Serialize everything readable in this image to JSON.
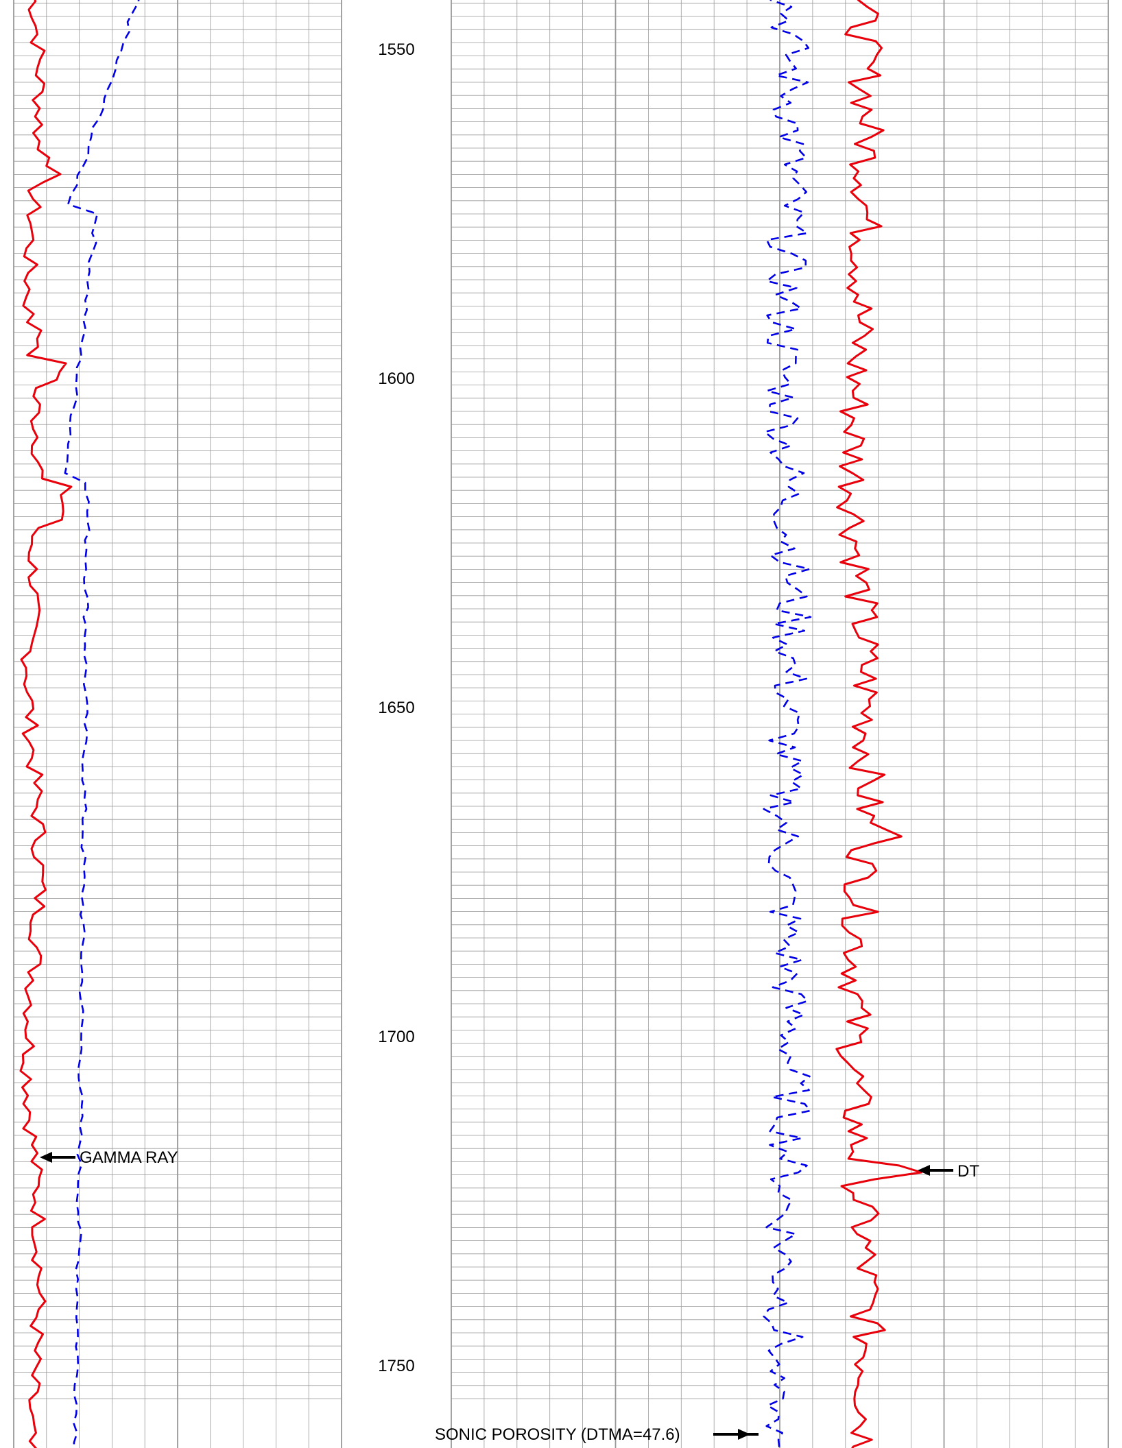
{
  "chart_data": {
    "type": "line",
    "depth_axis": {
      "range": [
        1535,
        1755
      ],
      "ticks": [
        1550,
        1600,
        1650,
        1700,
        1750
      ],
      "tick_labels": [
        "1550",
        "1600",
        "1650",
        "1700",
        "1750"
      ]
    },
    "colors": {
      "solid_curve": "#e8000b",
      "dashed_curve": "#0000e6",
      "grid": "#999999"
    },
    "tracks": [
      {
        "name": "track-1",
        "series": [
          {
            "name": "GAMMA RAY",
            "style": "solid",
            "label": "GAMMA RAY"
          },
          {
            "name": "",
            "style": "dashed"
          }
        ]
      },
      {
        "name": "track-2",
        "series": [
          {
            "name": "DT",
            "style": "solid",
            "label": "DT"
          },
          {
            "name": "SONIC POROSITY (DTMA=47.6)",
            "style": "dashed",
            "label": "SONIC POROSITY (DTMA=47.6)"
          }
        ]
      }
    ],
    "annotations": {
      "gamma_ray": "GAMMA RAY",
      "dt": "DT",
      "sonic_porosity": "SONIC POROSITY (DTMA=47.6)"
    }
  }
}
